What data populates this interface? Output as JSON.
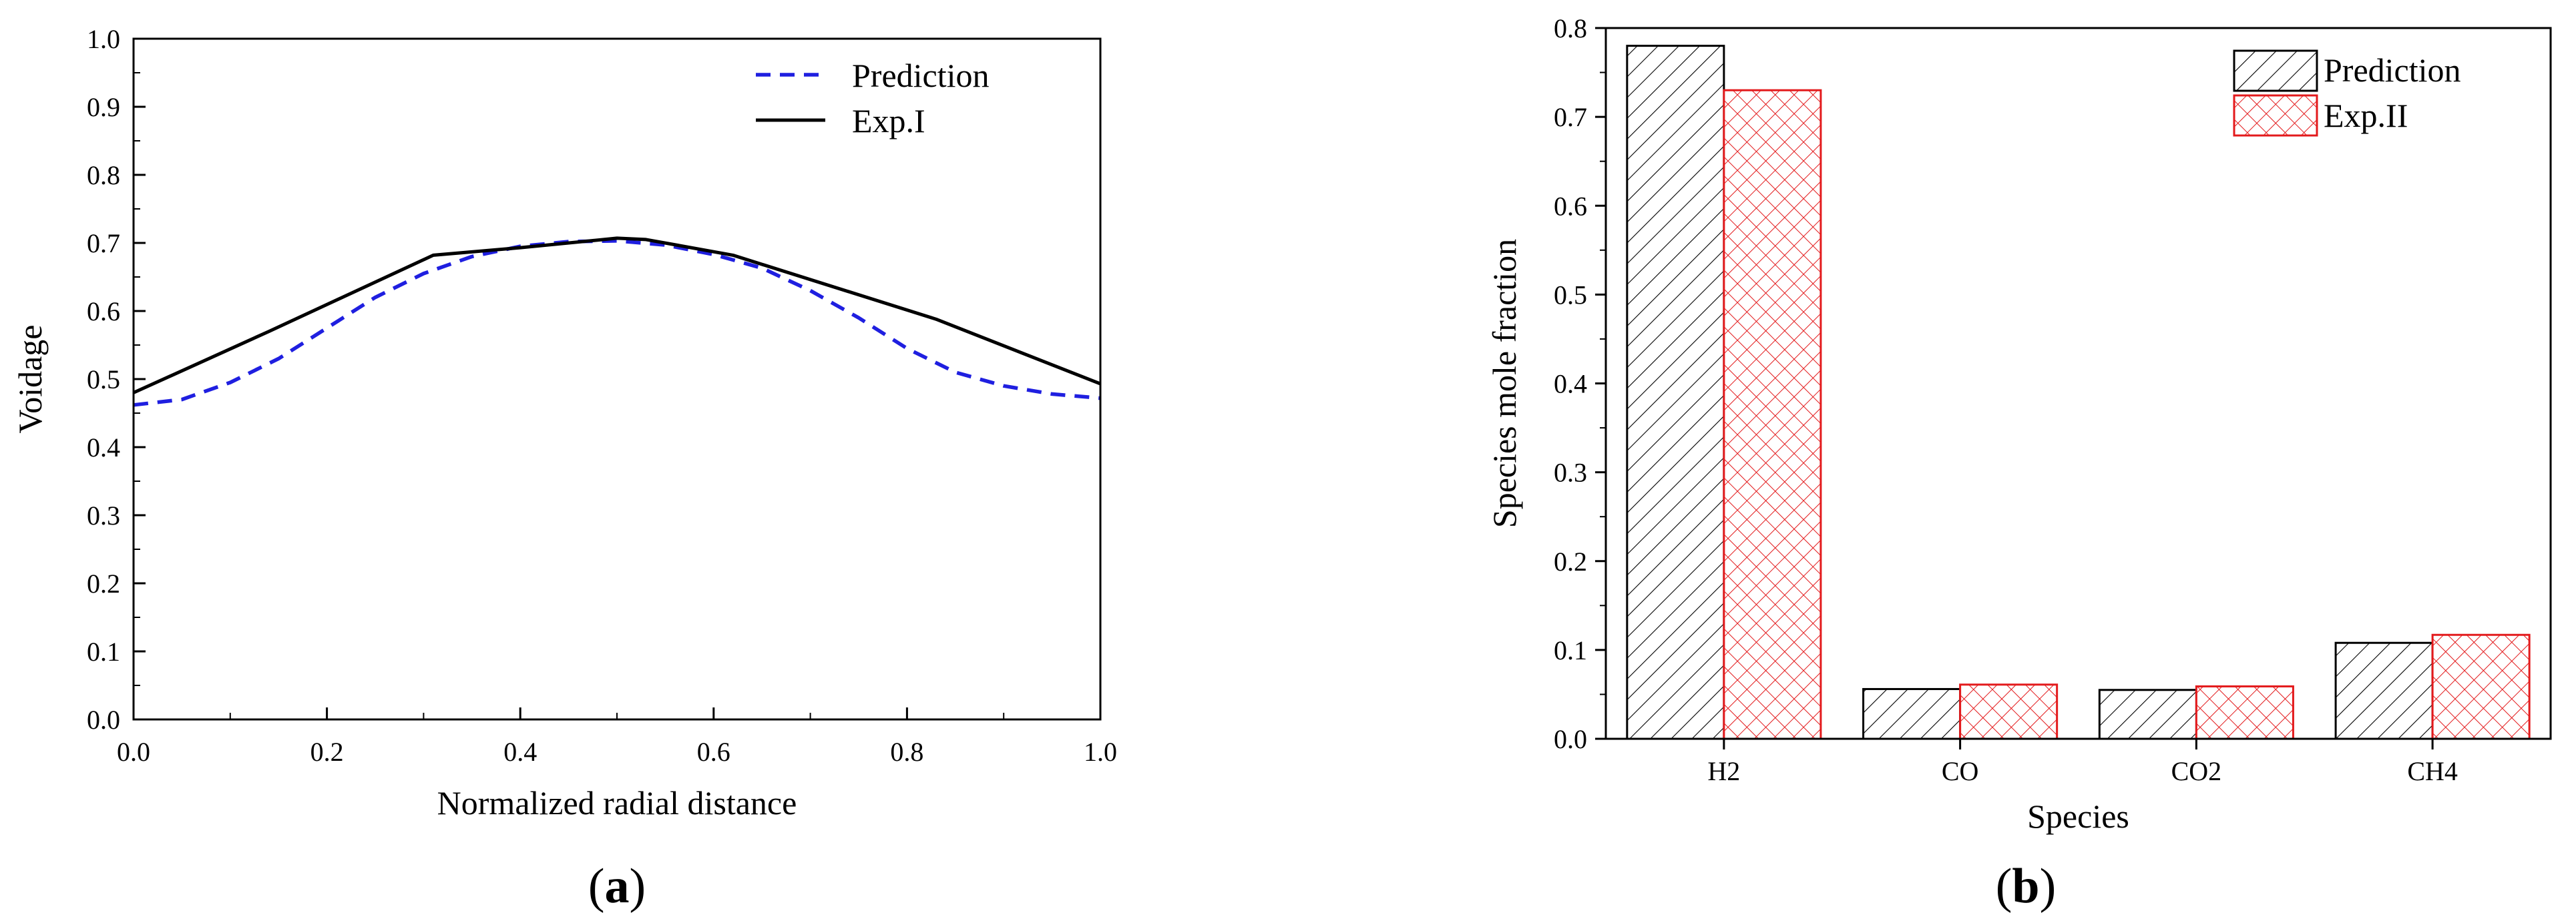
{
  "chart_data": [
    {
      "type": "line",
      "panel_label": "a",
      "xlabel": "Normalized radial distance",
      "ylabel": "Voidage",
      "xlim": [
        0.0,
        1.0
      ],
      "ylim": [
        0.0,
        1.0
      ],
      "xticks": [
        "0.0",
        "0.2",
        "0.4",
        "0.6",
        "0.8",
        "1.0"
      ],
      "yticks": [
        "0.0",
        "0.1",
        "0.2",
        "0.3",
        "0.4",
        "0.5",
        "0.6",
        "0.7",
        "0.8",
        "0.9",
        "1.0"
      ],
      "legend_position": "top-right",
      "series": [
        {
          "name": "Prediction",
          "style": "dashed",
          "color": "#1f1fe0",
          "x": [
            0.0,
            0.05,
            0.1,
            0.15,
            0.2,
            0.25,
            0.3,
            0.35,
            0.4,
            0.45,
            0.5,
            0.55,
            0.6,
            0.65,
            0.7,
            0.75,
            0.8,
            0.85,
            0.9,
            0.95,
            1.0
          ],
          "y": [
            0.462,
            0.47,
            0.495,
            0.53,
            0.575,
            0.62,
            0.655,
            0.68,
            0.695,
            0.702,
            0.703,
            0.697,
            0.683,
            0.663,
            0.63,
            0.59,
            0.545,
            0.51,
            0.49,
            0.478,
            0.472
          ]
        },
        {
          "name": "Exp.I",
          "style": "solid",
          "color": "#000000",
          "x": [
            0.0,
            0.14,
            0.31,
            0.4,
            0.5,
            0.53,
            0.62,
            0.83,
            1.0
          ],
          "y": [
            0.48,
            0.57,
            0.682,
            0.693,
            0.707,
            0.705,
            0.682,
            0.588,
            0.493
          ]
        }
      ]
    },
    {
      "type": "bar",
      "panel_label": "b",
      "xlabel": "Species",
      "ylabel": "Species mole fraction",
      "ylim": [
        0.0,
        0.8
      ],
      "yticks": [
        "0.0",
        "0.1",
        "0.2",
        "0.3",
        "0.4",
        "0.5",
        "0.6",
        "0.7",
        "0.8"
      ],
      "categories": [
        "H2",
        "CO",
        "CO2",
        "CH4"
      ],
      "legend_position": "top-right",
      "series": [
        {
          "name": "Prediction",
          "color": "#000000",
          "pattern": "diagonal-hatch",
          "values": [
            0.78,
            0.056,
            0.055,
            0.108
          ]
        },
        {
          "name": "Exp.II",
          "color": "#e31a1c",
          "pattern": "cross-hatch",
          "values": [
            0.73,
            0.061,
            0.059,
            0.117
          ]
        }
      ]
    }
  ]
}
